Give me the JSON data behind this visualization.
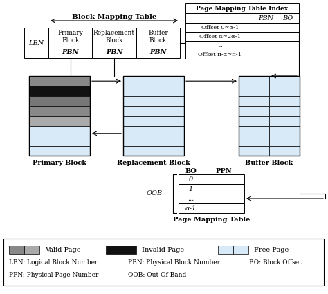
{
  "bg_color": "#ffffff",
  "block_mapping_title": "Block Mapping Table",
  "page_mapping_index_title": "Page Mapping Table Index",
  "page_mapping_title": "Page Mapping Table",
  "bmt_headers": [
    "Primary\nBlock",
    "Replacement\nBlock",
    "Buffer\nBlock"
  ],
  "bmt_row": [
    "LBN",
    "PBN",
    "PBN",
    "PBN"
  ],
  "pmti_col_headers": [
    "PBN",
    "BO"
  ],
  "pmti_rows": [
    "Offset 0~α-1",
    "Offset α~2α-1",
    "...",
    "Offset π-α~π-1"
  ],
  "pmt_col_headers": [
    "BO",
    "PPN"
  ],
  "pmt_rows": [
    "0",
    "1",
    "...",
    "α-1"
  ],
  "primary_block_colors": [
    "#888888",
    "#333333",
    "#666666",
    "#888888",
    "#aaaaaa",
    "#c8dcea",
    "#c8dcea",
    "#c8dcea"
  ],
  "replacement_block_color": "#d8eaf8",
  "buffer_block_color": "#d8eaf8",
  "free_page_color": "#d8eaf8",
  "legend_valid_colors": [
    "#888888",
    "#aaaaaa"
  ],
  "legend_invalid_color": "#111111",
  "legend_free_color": "#d8eaf8",
  "table_border": "#000000",
  "font_size": 7
}
